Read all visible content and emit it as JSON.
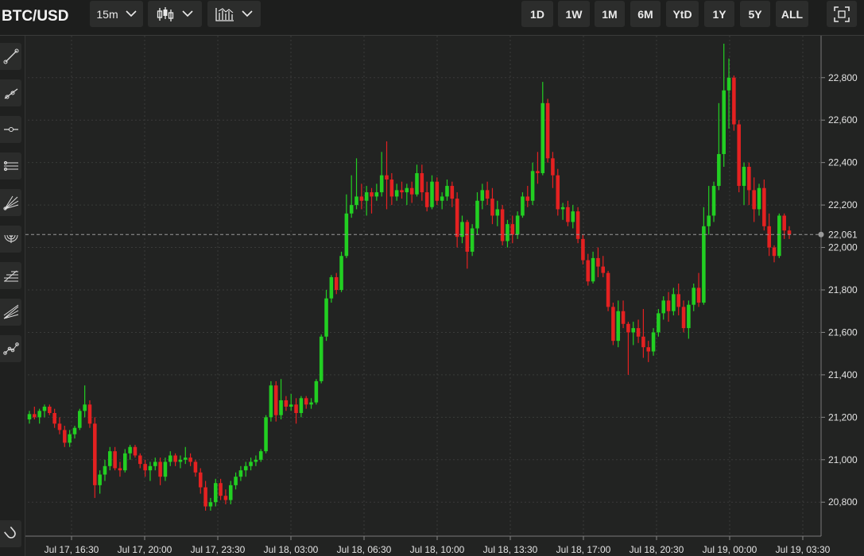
{
  "header": {
    "symbol": "BTC/USD",
    "interval_label": "15m",
    "chart_type_icon": "candlestick-icon",
    "indicator_icon": "chart-indicator-icon",
    "ranges": [
      "1D",
      "1W",
      "1M",
      "6M",
      "YtD",
      "1Y",
      "5Y",
      "ALL"
    ],
    "fullscreen_icon": "fullscreen-icon"
  },
  "sidebar": {
    "tools": [
      "trend-line-icon",
      "ray-icon",
      "horizontal-line-icon",
      "parallel-channel-icon",
      "fan-icon",
      "arc-icon",
      "fib-retracement-icon",
      "fib-fan-icon",
      "path-icon"
    ],
    "bottom_tool": "magnet-icon"
  },
  "colors": {
    "up": "#22cf22",
    "down": "#e42121",
    "background": "#222322",
    "grid": "#3a3b3a"
  },
  "chart_data": {
    "type": "candlestick",
    "title": "BTC/USD",
    "interval": "15m",
    "y_ticks": [
      20800,
      21000,
      21200,
      21400,
      21600,
      21800,
      22000,
      22200,
      22400,
      22600,
      22800
    ],
    "y_tick_labels": [
      "20,800",
      "21,000",
      "21,200",
      "21,400",
      "21,600",
      "21,800",
      "22,000",
      "22,200",
      "22,400",
      "22,600",
      "22,800"
    ],
    "ylim": [
      20640,
      22960
    ],
    "x_tick_labels": [
      "Jul 17, 16:30",
      "Jul 17, 20:00",
      "Jul 17, 23:30",
      "Jul 18, 03:00",
      "Jul 18, 06:30",
      "Jul 18, 10:00",
      "Jul 18, 13:30",
      "Jul 18, 17:00",
      "Jul 18, 20:30",
      "Jul 19, 00:00",
      "Jul 19, 03:30"
    ],
    "last_price": 22061,
    "last_price_label": "22,061",
    "grid": true,
    "candles": [
      [
        21190,
        21230,
        21170,
        21215
      ],
      [
        21215,
        21250,
        21190,
        21200
      ],
      [
        21200,
        21240,
        21170,
        21230
      ],
      [
        21230,
        21260,
        21200,
        21250
      ],
      [
        21250,
        21260,
        21210,
        21220
      ],
      [
        21220,
        21240,
        21150,
        21170
      ],
      [
        21170,
        21200,
        21120,
        21140
      ],
      [
        21140,
        21160,
        21060,
        21080
      ],
      [
        21080,
        21140,
        21060,
        21120
      ],
      [
        21120,
        21160,
        21100,
        21150
      ],
      [
        21150,
        21240,
        21140,
        21230
      ],
      [
        21230,
        21350,
        21200,
        21260
      ],
      [
        21260,
        21280,
        21150,
        21170
      ],
      [
        21170,
        21200,
        20820,
        20880
      ],
      [
        20880,
        20950,
        20840,
        20930
      ],
      [
        20930,
        21000,
        20900,
        20970
      ],
      [
        20970,
        21060,
        20950,
        21040
      ],
      [
        21040,
        21060,
        20950,
        20960
      ],
      [
        20960,
        20990,
        20920,
        20950
      ],
      [
        20950,
        21050,
        20940,
        21030
      ],
      [
        21030,
        21070,
        21000,
        21060
      ],
      [
        21060,
        21070,
        21010,
        21020
      ],
      [
        21020,
        21030,
        20960,
        20980
      ],
      [
        20980,
        21000,
        20920,
        20950
      ],
      [
        20950,
        20990,
        20900,
        20970
      ],
      [
        20970,
        21010,
        20950,
        20990
      ],
      [
        20990,
        21010,
        20880,
        20920
      ],
      [
        20920,
        21010,
        20900,
        20990
      ],
      [
        20990,
        21040,
        20970,
        21020
      ],
      [
        21020,
        21030,
        20970,
        20990
      ],
      [
        20990,
        21020,
        20960,
        21000
      ],
      [
        21000,
        21060,
        20980,
        21010
      ],
      [
        21010,
        21030,
        20970,
        20990
      ],
      [
        20990,
        21000,
        20920,
        20940
      ],
      [
        20940,
        20960,
        20840,
        20870
      ],
      [
        20870,
        20900,
        20760,
        20780
      ],
      [
        20780,
        20820,
        20760,
        20800
      ],
      [
        20800,
        20910,
        20780,
        20890
      ],
      [
        20890,
        20910,
        20810,
        20830
      ],
      [
        20830,
        20860,
        20790,
        20810
      ],
      [
        20810,
        20900,
        20790,
        20880
      ],
      [
        20880,
        20940,
        20860,
        20920
      ],
      [
        20920,
        20970,
        20900,
        20950
      ],
      [
        20950,
        20990,
        20920,
        20970
      ],
      [
        20970,
        21010,
        20950,
        20990
      ],
      [
        20990,
        21020,
        20970,
        21000
      ],
      [
        21000,
        21050,
        20990,
        21040
      ],
      [
        21040,
        21210,
        21030,
        21200
      ],
      [
        21200,
        21370,
        21180,
        21350
      ],
      [
        21350,
        21370,
        21180,
        21210
      ],
      [
        21210,
        21380,
        21190,
        21280
      ],
      [
        21280,
        21300,
        21230,
        21250
      ],
      [
        21250,
        21310,
        21230,
        21260
      ],
      [
        21260,
        21290,
        21170,
        21220
      ],
      [
        21220,
        21300,
        21200,
        21290
      ],
      [
        21290,
        21300,
        21240,
        21260
      ],
      [
        21260,
        21290,
        21240,
        21270
      ],
      [
        21270,
        21380,
        21260,
        21370
      ],
      [
        21370,
        21590,
        21360,
        21580
      ],
      [
        21580,
        21800,
        21560,
        21760
      ],
      [
        21760,
        21870,
        21740,
        21860
      ],
      [
        21860,
        21880,
        21780,
        21800
      ],
      [
        21800,
        21980,
        21790,
        21960
      ],
      [
        21960,
        22250,
        21950,
        22160
      ],
      [
        22160,
        22340,
        22140,
        22200
      ],
      [
        22200,
        22420,
        22180,
        22240
      ],
      [
        22240,
        22300,
        22180,
        22220
      ],
      [
        22220,
        22290,
        22150,
        22260
      ],
      [
        22260,
        22280,
        22160,
        22240
      ],
      [
        22240,
        22300,
        22220,
        22260
      ],
      [
        22260,
        22450,
        22240,
        22340
      ],
      [
        22340,
        22500,
        22180,
        22320
      ],
      [
        22320,
        22350,
        22200,
        22240
      ],
      [
        22240,
        22300,
        22220,
        22270
      ],
      [
        22270,
        22310,
        22230,
        22260
      ],
      [
        22260,
        22300,
        22200,
        22280
      ],
      [
        22280,
        22310,
        22210,
        22250
      ],
      [
        22250,
        22390,
        22240,
        22350
      ],
      [
        22350,
        22390,
        22220,
        22260
      ],
      [
        22260,
        22310,
        22170,
        22190
      ],
      [
        22190,
        22340,
        22180,
        22310
      ],
      [
        22310,
        22330,
        22200,
        22220
      ],
      [
        22220,
        22260,
        22180,
        22240
      ],
      [
        22240,
        22320,
        22220,
        22290
      ],
      [
        22290,
        22310,
        22190,
        22230
      ],
      [
        22230,
        22260,
        22000,
        22050
      ],
      [
        22050,
        22150,
        22020,
        22120
      ],
      [
        22120,
        22130,
        21900,
        21980
      ],
      [
        21980,
        22110,
        21960,
        22090
      ],
      [
        22090,
        22260,
        22060,
        22220
      ],
      [
        22220,
        22300,
        22180,
        22270
      ],
      [
        22270,
        22310,
        22200,
        22230
      ],
      [
        22230,
        22280,
        22110,
        22150
      ],
      [
        22150,
        22220,
        22100,
        22180
      ],
      [
        22180,
        22200,
        22010,
        22030
      ],
      [
        22030,
        22130,
        22000,
        22110
      ],
      [
        22110,
        22150,
        22020,
        22060
      ],
      [
        22060,
        22170,
        22040,
        22150
      ],
      [
        22150,
        22260,
        22140,
        22240
      ],
      [
        22240,
        22290,
        22190,
        22220
      ],
      [
        22220,
        22400,
        22200,
        22360
      ],
      [
        22360,
        22450,
        22300,
        22350
      ],
      [
        22350,
        22780,
        22340,
        22680
      ],
      [
        22680,
        22700,
        22400,
        22420
      ],
      [
        22420,
        22450,
        22280,
        22340
      ],
      [
        22340,
        22370,
        22150,
        22180
      ],
      [
        22180,
        22210,
        22130,
        22190
      ],
      [
        22190,
        22220,
        22100,
        22120
      ],
      [
        22120,
        22200,
        22090,
        22170
      ],
      [
        22170,
        22190,
        22020,
        22040
      ],
      [
        22040,
        22060,
        21920,
        21940
      ],
      [
        21940,
        21970,
        21820,
        21840
      ],
      [
        21840,
        21980,
        21830,
        21950
      ],
      [
        21950,
        22000,
        21860,
        21910
      ],
      [
        21910,
        21960,
        21860,
        21880
      ],
      [
        21880,
        21890,
        21700,
        21720
      ],
      [
        21720,
        21740,
        21540,
        21560
      ],
      [
        21560,
        21750,
        21530,
        21700
      ],
      [
        21700,
        21750,
        21620,
        21640
      ],
      [
        21640,
        21650,
        21400,
        21600
      ],
      [
        21600,
        21650,
        21540,
        21620
      ],
      [
        21620,
        21660,
        21550,
        21580
      ],
      [
        21580,
        21710,
        21480,
        21530
      ],
      [
        21530,
        21560,
        21460,
        21510
      ],
      [
        21510,
        21620,
        21490,
        21600
      ],
      [
        21600,
        21710,
        21580,
        21690
      ],
      [
        21690,
        21770,
        21660,
        21750
      ],
      [
        21750,
        21790,
        21650,
        21700
      ],
      [
        21700,
        21810,
        21680,
        21780
      ],
      [
        21780,
        21830,
        21680,
        21720
      ],
      [
        21720,
        21750,
        21600,
        21620
      ],
      [
        21620,
        21750,
        21570,
        21730
      ],
      [
        21730,
        21830,
        21700,
        21810
      ],
      [
        21810,
        21880,
        21720,
        21740
      ],
      [
        21740,
        22190,
        21730,
        22100
      ],
      [
        22100,
        22290,
        22060,
        22150
      ],
      [
        22150,
        22310,
        22120,
        22290
      ],
      [
        22290,
        22680,
        22270,
        22440
      ],
      [
        22440,
        22960,
        22380,
        22740
      ],
      [
        22740,
        22890,
        22560,
        22800
      ],
      [
        22800,
        22810,
        22550,
        22580
      ],
      [
        22580,
        22600,
        22260,
        22290
      ],
      [
        22290,
        22400,
        22200,
        22380
      ],
      [
        22380,
        22400,
        22200,
        22270
      ],
      [
        22270,
        22330,
        22120,
        22180
      ],
      [
        22180,
        22300,
        22150,
        22280
      ],
      [
        22280,
        22320,
        22080,
        22100
      ],
      [
        22100,
        22160,
        21960,
        22000
      ],
      [
        22000,
        22010,
        21930,
        21960
      ],
      [
        21960,
        22160,
        21950,
        22150
      ],
      [
        22150,
        22160,
        22040,
        22080
      ],
      [
        22080,
        22100,
        22040,
        22061
      ]
    ]
  }
}
